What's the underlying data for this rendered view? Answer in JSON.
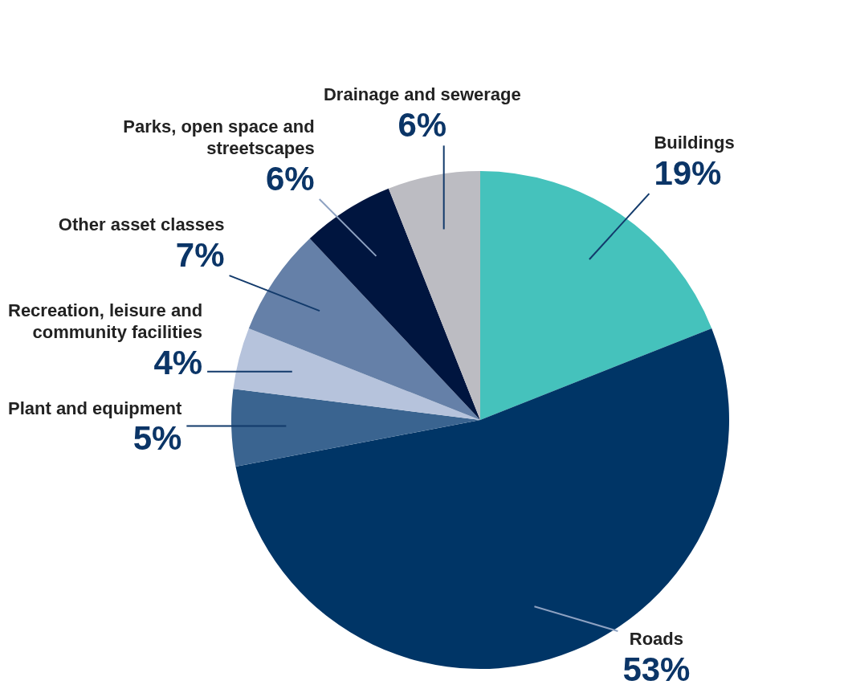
{
  "chart_data": {
    "type": "pie",
    "categories": [
      "Buildings",
      "Roads",
      "Plant and equipment",
      "Recreation, leisure and community facilities",
      "Other asset classes",
      "Parks, open space and streetscapes",
      "Drainage and sewerage"
    ],
    "values": [
      19,
      53,
      5,
      4,
      7,
      6,
      6
    ],
    "value_labels": [
      "19%",
      "53%",
      "5%",
      "4%",
      "7%",
      "6%",
      "6%"
    ],
    "colors": [
      "#45c2bc",
      "#003566",
      "#3a6490",
      "#b6c3dc",
      "#6580a8",
      "#00153f",
      "#bcbcc2"
    ]
  }
}
